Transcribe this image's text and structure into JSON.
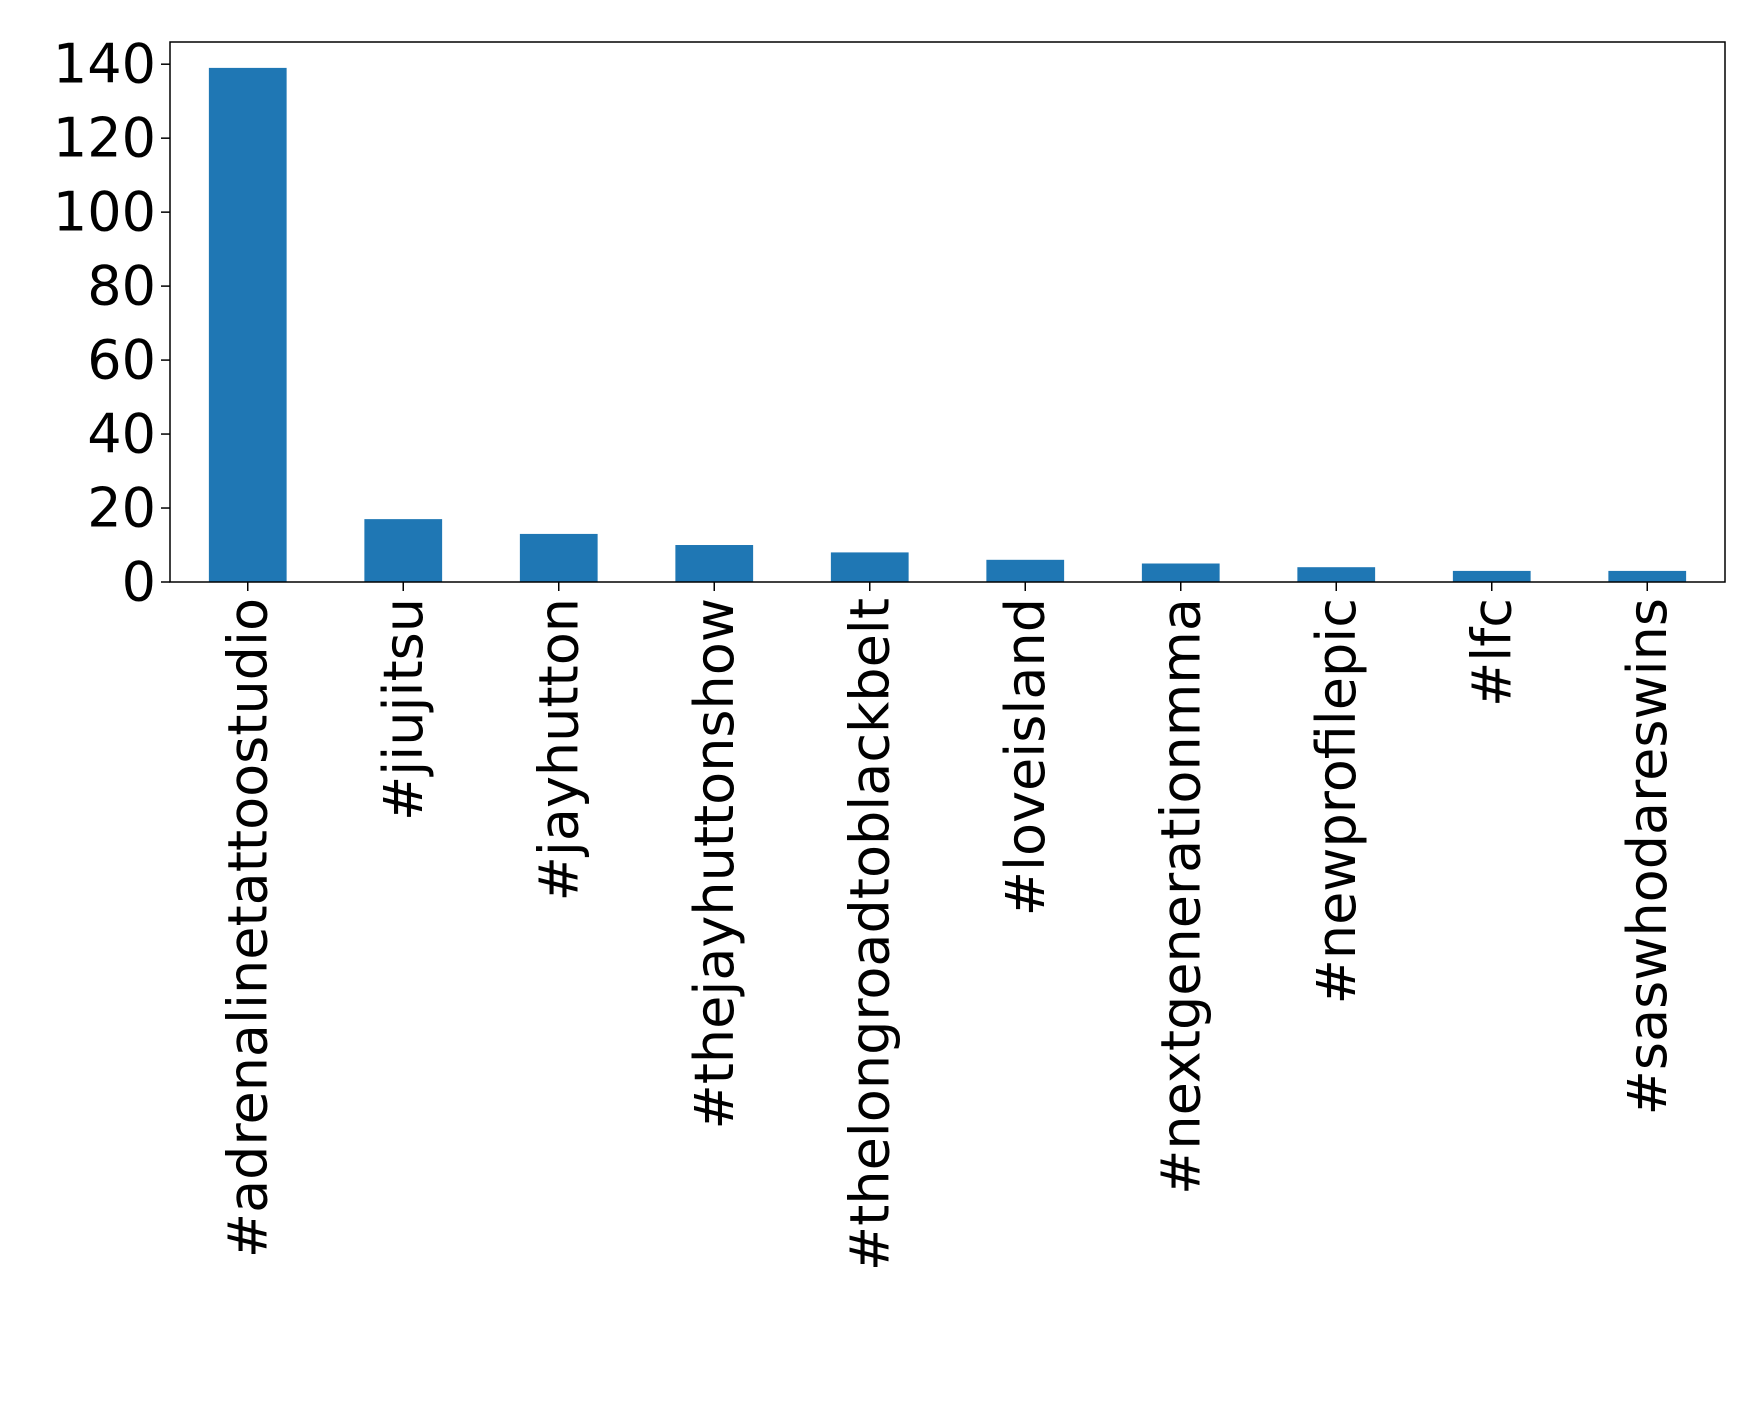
{
  "chart_data": {
    "type": "bar",
    "title": "",
    "xlabel": "",
    "ylabel": "",
    "categories": [
      "#adrenalinetattoostudio",
      "#jiujitsu",
      "#jayhutton",
      "#thejayhuttonshow",
      "#thelongroadtoblackbelt",
      "#loveisland",
      "#nextgenerationmma",
      "#newprofilepic",
      "#lfc",
      "#saswhodareswins"
    ],
    "values": [
      139,
      17,
      13,
      10,
      8,
      6,
      5,
      4,
      3,
      3
    ],
    "ylim": [
      0,
      146
    ],
    "yticks": [
      0,
      20,
      40,
      60,
      80,
      100,
      120,
      140
    ],
    "grid": false,
    "legend": "none",
    "bar_color": "#1f77b4"
  }
}
